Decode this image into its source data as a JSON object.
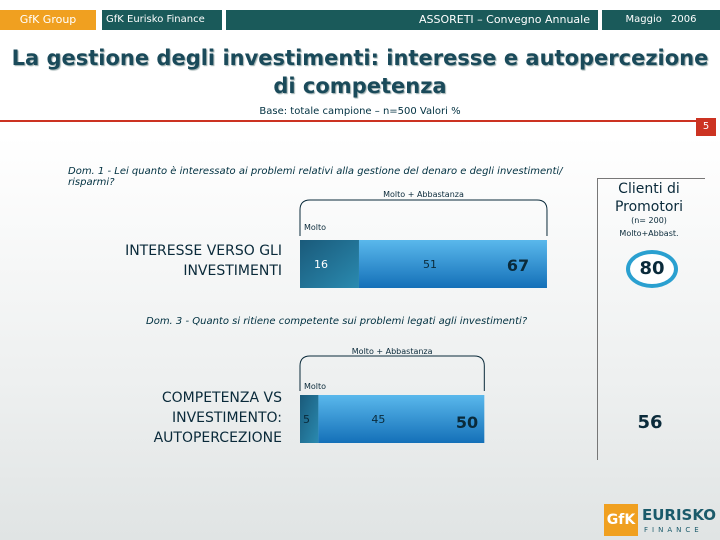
{
  "header": {
    "gfk_group": "GfK Group",
    "eurisko": "GfK Eurisko Finance",
    "event": "ASSORETI – Convegno Annuale",
    "date": "Maggio 2006"
  },
  "title": "La gestione degli investimenti: interesse e autopercezione di competenza",
  "base": "Base: totale campione – n=500 Valori %",
  "page_number": "5",
  "colors": {
    "accent_red": "#cc3322",
    "header_teal": "#1a5a5a",
    "gfk_orange": "#f0a020",
    "bar_blue": "#1e8ad0",
    "bar_dark": "#1a5a7a",
    "circle": "#2aa0d0"
  },
  "clienti": {
    "title": "Clienti di Promotori",
    "n": "(n= 200)",
    "sub": "Molto+Abbast."
  },
  "chart_data": [
    {
      "type": "bar",
      "question": "Dom. 1 - Lei quanto è interessato ai problemi relativi alla gestione del denaro e degli investimenti/ risparmi?",
      "row_label": "INTERESSE VERSO GLI INVESTIMENTI",
      "bracket_total_label": "Molto + Abbastanza",
      "bracket_molto_label": "Molto",
      "series": [
        {
          "name": "Molto",
          "values": [
            16
          ]
        },
        {
          "name": "Abbastanza",
          "values": [
            51
          ]
        }
      ],
      "total": 67,
      "clienti_value": 80,
      "xlim": [
        0,
        100
      ]
    },
    {
      "type": "bar",
      "question": "Dom. 3 - Quanto si ritiene competente sui problemi legati agli investimenti?",
      "row_label": "COMPETENZA VS INVESTIMENTO: AUTOPERCEZIONE",
      "bracket_total_label": "Molto + Abbastanza",
      "bracket_molto_label": "Molto",
      "series": [
        {
          "name": "Molto",
          "values": [
            5
          ]
        },
        {
          "name": "Abbastanza",
          "values": [
            45
          ]
        }
      ],
      "total": 50,
      "clienti_value": 56,
      "xlim": [
        0,
        100
      ]
    }
  ]
}
